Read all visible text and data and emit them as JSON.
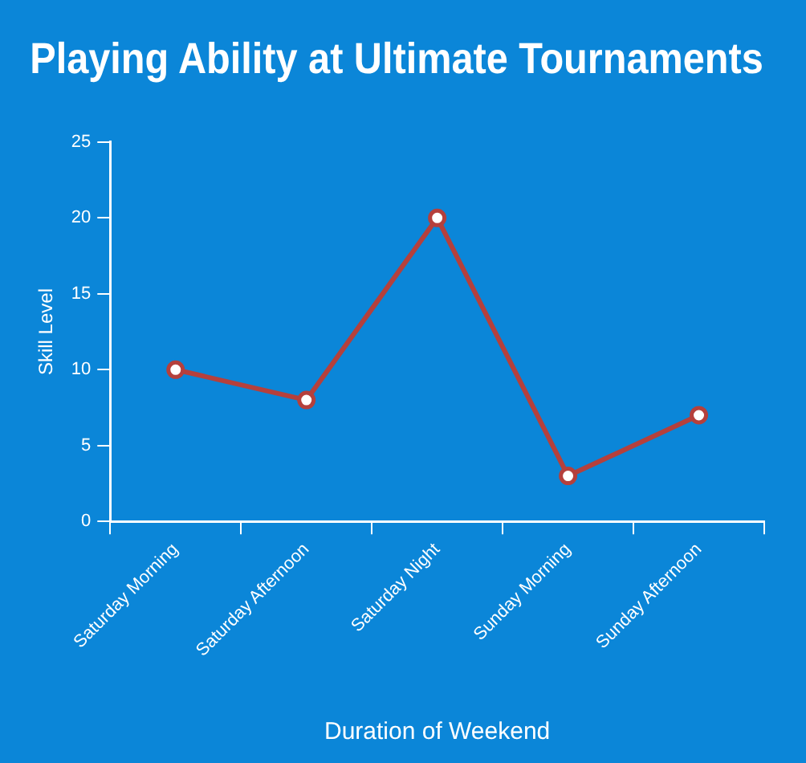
{
  "chart_data": {
    "type": "line",
    "title": "Playing Ability at Ultimate Tournaments",
    "xlabel": "Duration of Weekend",
    "ylabel": "Skill Level",
    "categories": [
      "Saturday Morning",
      "Saturday Afternoon",
      "Saturday Night",
      "Sunday Morning",
      "Sunday Afternoon"
    ],
    "series": [
      {
        "color": "#b5403c",
        "values": [
          10,
          8,
          20,
          3,
          7
        ]
      }
    ],
    "ylim": [
      0,
      25
    ],
    "yticks": [
      0,
      5,
      10,
      15,
      20,
      25
    ],
    "grid": false,
    "legend": false,
    "marker": "circle",
    "line_style": "solid"
  }
}
